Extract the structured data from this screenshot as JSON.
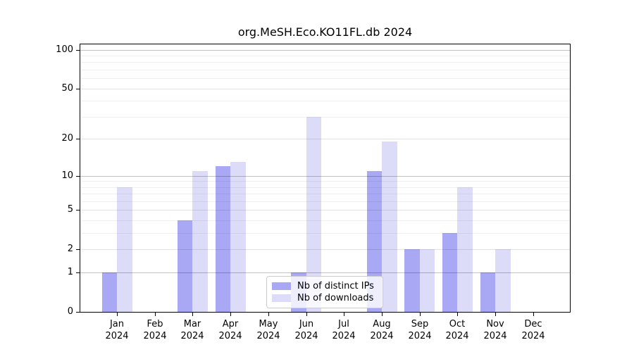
{
  "title": "org.MeSH.Eco.KO11FL.db 2024",
  "chart_data": {
    "type": "bar",
    "title": "org.MeSH.Eco.KO11FL.db 2024",
    "categories": [
      "Jan 2024",
      "Feb 2024",
      "Mar 2024",
      "Apr 2024",
      "May 2024",
      "Jun 2024",
      "Jul 2024",
      "Aug 2024",
      "Sep 2024",
      "Oct 2024",
      "Nov 2024",
      "Dec 2024"
    ],
    "month_labels": [
      "Jan",
      "Feb",
      "Mar",
      "Apr",
      "May",
      "Jun",
      "Jul",
      "Aug",
      "Sep",
      "Oct",
      "Nov",
      "Dec"
    ],
    "year_label": "2024",
    "series": [
      {
        "name": "Nb of distinct IPs",
        "color": "#a8a8f4",
        "values": [
          1,
          0,
          4,
          12,
          0,
          1,
          0,
          11,
          2,
          3,
          1,
          0
        ]
      },
      {
        "name": "Nb of downloads",
        "color": "#dcdcf8",
        "values": [
          8,
          0,
          11,
          13,
          0,
          30,
          0,
          19,
          2,
          8,
          2,
          0
        ]
      }
    ],
    "yscale": "log1p",
    "ylim": [
      0,
      110
    ],
    "y_ticks": [
      0,
      1,
      2,
      5,
      10,
      20,
      50,
      100
    ],
    "y_minor_gridlines": [
      3,
      4,
      6,
      7,
      8,
      9,
      30,
      40,
      60,
      70,
      80,
      90
    ],
    "y_mid_gridlines": [
      2,
      5,
      20,
      50
    ],
    "y_major_gridlines": [
      1,
      10,
      100
    ],
    "grid": "horizontal",
    "legend_position": "lower-center-inside"
  },
  "colors": {
    "major_grid": "rgba(0,0,0,0.24)",
    "mid_grid": "rgba(0,0,0,0.11)",
    "minor_grid": "rgba(0,0,0,0.06)",
    "axis": "#000000",
    "text": "#000000"
  }
}
